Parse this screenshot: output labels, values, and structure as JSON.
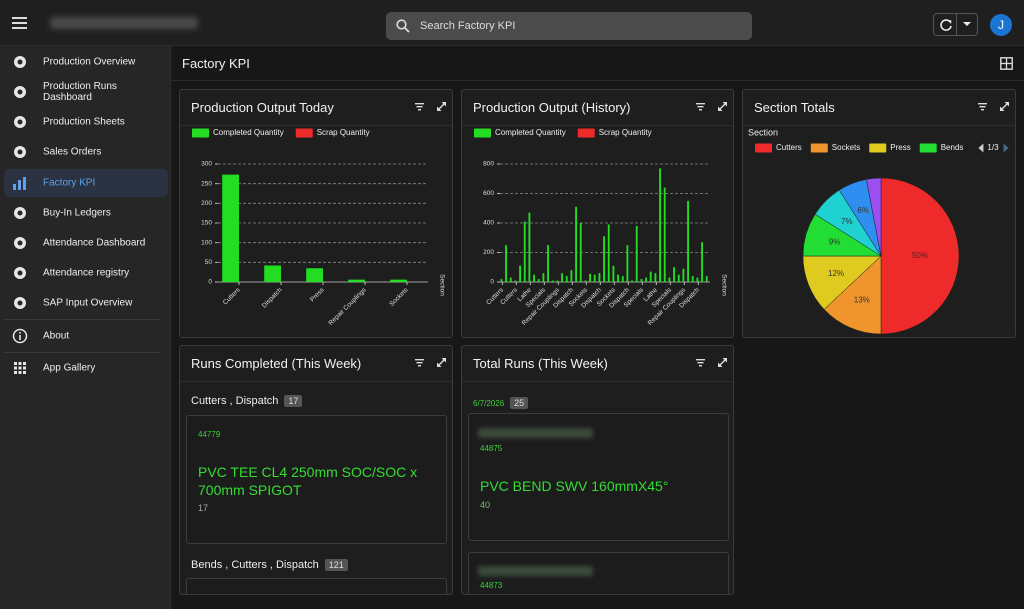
{
  "header": {
    "search_placeholder": "Search Factory KPI",
    "avatar": "J"
  },
  "nav": [
    "Production Overview",
    "Production Runs Dashboard",
    "Production Sheets",
    "Sales Orders",
    "Factory KPI",
    "Buy-In Ledgers",
    "Attendance Dashboard",
    "Attendance registry",
    "SAP Input Overview",
    "About",
    "App Gallery"
  ],
  "page_title": "Factory KPI",
  "chart_data": [
    {
      "type": "bar",
      "title": "Production Output Today",
      "categories": [
        "Cutters",
        "Dispatch",
        "Press",
        "Repair Couplings",
        "Sockets"
      ],
      "series": [
        {
          "name": "Completed Quantity",
          "color": "#22dd22",
          "values": [
            273,
            42,
            35,
            6,
            6
          ]
        },
        {
          "name": "Scrap Quantity",
          "color": "#ee2b2b",
          "values": [
            0,
            0,
            0,
            0,
            0
          ]
        }
      ],
      "x_label": "Section",
      "ylim": [
        0,
        300
      ],
      "yticks": [
        0,
        50,
        100,
        150,
        200,
        250,
        300
      ],
      "grid": true,
      "legend": "top"
    },
    {
      "type": "bar",
      "title": "Production Output (History)",
      "categories": [
        "Cutters",
        null,
        null,
        "Cutters",
        null,
        null,
        "Lathe",
        null,
        null,
        "Specials",
        null,
        null,
        "Repair Couplings",
        null,
        null,
        "Dispatch",
        null,
        null,
        "Sockets",
        null,
        null,
        "Dispatch",
        null,
        null,
        "Sockets",
        null,
        null,
        "Dispatch",
        null,
        null,
        "Specials",
        null,
        null,
        "Lathe",
        null,
        null,
        "Specials",
        null,
        null,
        "Repair Couplings",
        null,
        null,
        "Dispatch",
        null,
        null
      ],
      "series": [
        {
          "name": "Completed Quantity",
          "color": "#22dd22",
          "values": [
            20,
            250,
            30,
            10,
            110,
            410,
            470,
            50,
            20,
            60,
            250,
            10,
            10,
            60,
            40,
            80,
            510,
            400,
            10,
            55,
            50,
            60,
            310,
            390,
            110,
            50,
            40,
            250,
            10,
            380,
            20,
            30,
            70,
            60,
            770,
            640,
            30,
            100,
            50,
            90,
            550,
            40,
            30,
            270,
            40
          ]
        },
        {
          "name": "Scrap Quantity",
          "color": "#ee2b2b",
          "values": [
            0,
            0,
            0,
            0,
            0,
            0,
            0,
            0,
            0,
            0,
            0,
            0,
            0,
            0,
            0,
            0,
            0,
            0,
            0,
            0,
            0,
            0,
            0,
            0,
            0,
            0,
            0,
            0,
            0,
            0,
            0,
            0,
            0,
            0,
            0,
            0,
            0,
            0,
            0,
            0,
            0,
            0,
            0,
            0,
            0
          ]
        }
      ],
      "x_label": "Section",
      "ylim": [
        0,
        800
      ],
      "yticks": [
        0,
        200,
        400,
        600,
        800
      ],
      "grid": true,
      "legend": "top"
    },
    {
      "type": "pie",
      "title": "Section Totals",
      "legend_title": "Section",
      "legend_page": "1/3",
      "categories": [
        "Cutters",
        "Sockets",
        "Press",
        "Bends",
        null,
        null,
        null
      ],
      "values": [
        50,
        13,
        12,
        9,
        7,
        6,
        3
      ],
      "value_labels": [
        "50%",
        "13%",
        "12%",
        "9%",
        "7%",
        "6%",
        null
      ],
      "colors": [
        "#ee2a2a",
        "#f0952e",
        "#dfcb1f",
        "#22dd33",
        "#1fd1d1",
        "#2e8ff0",
        "#9b4ff0"
      ],
      "legend": "top"
    }
  ],
  "runs_week": {
    "title": "Runs Completed (This Week)",
    "groups": [
      {
        "name": "Cutters , Dispatch",
        "count": 17,
        "items": [
          {
            "id": "44779",
            "title": "PVC TEE CL4 250mm SOC/SOC x 700mm SPIGOT",
            "qty": 17
          }
        ]
      },
      {
        "name": "Bends , Cutters , Dispatch",
        "count": 121
      }
    ]
  },
  "total_runs": {
    "title": "Total Runs (This Week)",
    "groups": [
      {
        "date": "6/7/2026",
        "count": 25,
        "items": [
          {
            "id": "44875",
            "title": "PVC BEND SWV 160mmX45°",
            "qty": 40
          },
          {
            "id": "44873"
          }
        ]
      }
    ]
  }
}
